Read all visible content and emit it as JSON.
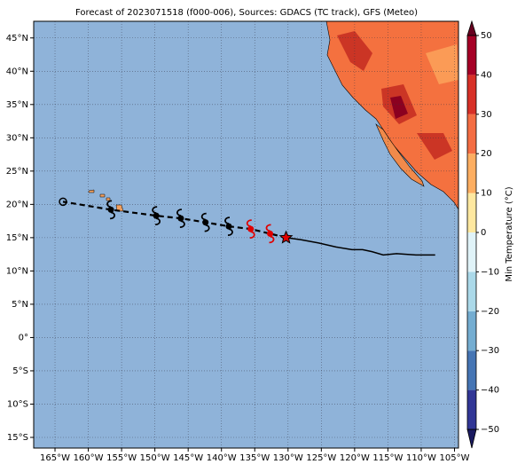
{
  "map": {
    "title": "Forecast of 2023071518 (f000-006), Sources: GDACS (TC track), GFS (Meteo)",
    "lonlim": [
      -168.2,
      -104.4
    ],
    "latlim": [
      -16.6,
      47.5
    ],
    "lon_ticks": [
      {
        "value": -165,
        "label": "165°W"
      },
      {
        "value": -160,
        "label": "160°W"
      },
      {
        "value": -155,
        "label": "155°W"
      },
      {
        "value": -150,
        "label": "150°W"
      },
      {
        "value": -145,
        "label": "145°W"
      },
      {
        "value": -140,
        "label": "140°W"
      },
      {
        "value": -135,
        "label": "135°W"
      },
      {
        "value": -130,
        "label": "130°W"
      },
      {
        "value": -125,
        "label": "125°W"
      },
      {
        "value": -120,
        "label": "120°W"
      },
      {
        "value": -115,
        "label": "115°W"
      },
      {
        "value": -110,
        "label": "110°W"
      },
      {
        "value": -105,
        "label": "105°W"
      }
    ],
    "lat_ticks": [
      {
        "value": 45,
        "label": "45°N"
      },
      {
        "value": 40,
        "label": "40°N"
      },
      {
        "value": 35,
        "label": "35°N"
      },
      {
        "value": 30,
        "label": "30°N"
      },
      {
        "value": 25,
        "label": "25°N"
      },
      {
        "value": 20,
        "label": "20°N"
      },
      {
        "value": 15,
        "label": "15°N"
      },
      {
        "value": 10,
        "label": "10°N"
      },
      {
        "value": 5,
        "label": "5°N"
      },
      {
        "value": 0,
        "label": "0°"
      },
      {
        "value": -5,
        "label": "5°S"
      },
      {
        "value": -10,
        "label": "10°S"
      },
      {
        "value": -15,
        "label": "15°S"
      }
    ],
    "observed_track": {
      "lon": [
        -130.3,
        -128.1,
        -125.4,
        -122.8,
        -120.4,
        -118.8,
        -117.4,
        -115.7,
        -113.7,
        -110.8,
        -107.9
      ],
      "lat": [
        15.0,
        14.7,
        14.2,
        13.6,
        13.2,
        13.2,
        12.9,
        12.4,
        12.6,
        12.4,
        12.4
      ]
    },
    "forecast_track": {
      "lon": [
        -130.3,
        -132.7,
        -135.6,
        -138.9,
        -142.4,
        -146.1,
        -149.8,
        -156.6,
        -163.8
      ],
      "lat": [
        15.0,
        15.6,
        16.3,
        16.7,
        17.3,
        17.9,
        18.3,
        19.2,
        20.4
      ],
      "colors": [
        "#e00000",
        "#e00000",
        "#e00000",
        "#000000",
        "#000000",
        "#000000",
        "#000000",
        "#000000",
        "#000000"
      ]
    },
    "colorbar": {
      "label": "Min Temperature (°C)",
      "lim": [
        -50,
        50
      ],
      "ticks": [
        50,
        40,
        30,
        20,
        10,
        0,
        {
          "value": -10,
          "label": "−10"
        },
        {
          "value": -20,
          "label": "−20"
        },
        {
          "value": -30,
          "label": "−30"
        },
        {
          "value": -40,
          "label": "−40"
        },
        {
          "value": -50,
          "label": "−50"
        }
      ],
      "colors": [
        "#313695",
        "#4575b4",
        "#74add1",
        "#abd9e9",
        "#e0f3f8",
        "#fee8a0",
        "#fdae61",
        "#f46d43",
        "#d73027",
        "#a50026"
      ]
    }
  }
}
